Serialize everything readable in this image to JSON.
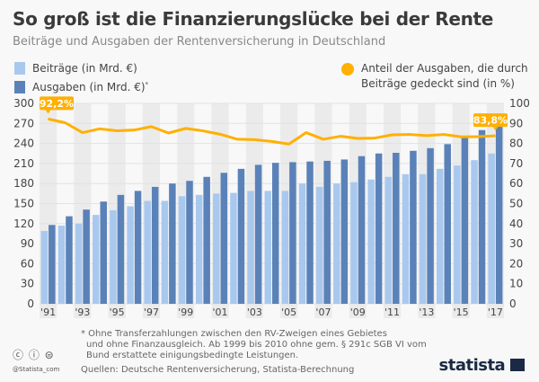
{
  "chart_data": {
    "type": "bar+line",
    "title": "So groß ist die Finanzierungslücke bei der Rente",
    "subtitle": "Beiträge und Ausgaben der Rentenversicherung in Deutschland",
    "categories": [
      "1991",
      "1992",
      "1993",
      "1994",
      "1995",
      "1996",
      "1997",
      "1998",
      "1999",
      "2000",
      "2001",
      "2002",
      "2003",
      "2004",
      "2005",
      "2006",
      "2007",
      "2008",
      "2009",
      "2010",
      "2011",
      "2012",
      "2013",
      "2014",
      "2015",
      "2016",
      "2017"
    ],
    "x_tick_labels": [
      "'91",
      "'93",
      "'95",
      "'97",
      "'99",
      "'01",
      "'03",
      "'05",
      "'07",
      "'09",
      "'11",
      "'13",
      "'15",
      "'17"
    ],
    "series": [
      {
        "name": "Beiträge (in Mrd. €)",
        "type": "bar",
        "axis": "left",
        "color": "#a9c8ee",
        "values": [
          109,
          117,
          120,
          133,
          140,
          146,
          154,
          154,
          161,
          163,
          165,
          166,
          169,
          169,
          169,
          180,
          175,
          180,
          182,
          186,
          190,
          194,
          194,
          202,
          207,
          215,
          225
        ]
      },
      {
        "name": "Ausgaben (in Mrd. €)*",
        "type": "bar",
        "axis": "left",
        "color": "#5a82b8",
        "values": [
          118,
          131,
          141,
          153,
          163,
          169,
          175,
          180,
          184,
          190,
          196,
          202,
          208,
          211,
          212,
          213,
          214,
          216,
          221,
          225,
          226,
          229,
          233,
          239,
          249,
          260,
          269
        ]
      },
      {
        "name": "Anteil der Ausgaben, die durch Beiträge gedeckt sind (in %)",
        "type": "line",
        "axis": "right",
        "color": "#ffb000",
        "values": [
          92.2,
          90.3,
          85.4,
          87.3,
          86.3,
          86.7,
          88.4,
          85.2,
          87.5,
          86.3,
          84.6,
          82.1,
          81.9,
          81.0,
          79.7,
          85.4,
          82.1,
          83.6,
          82.5,
          82.7,
          84.3,
          84.5,
          83.9,
          84.5,
          83.3,
          83.4,
          83.8
        ]
      }
    ],
    "y_left": {
      "ylim": [
        0,
        300
      ],
      "ticks": [
        "0",
        "30",
        "60",
        "90",
        "120",
        "150",
        "180",
        "210",
        "240",
        "270",
        "300"
      ]
    },
    "y_right": {
      "ylim": [
        0,
        100
      ],
      "ticks": [
        "0",
        "10",
        "20",
        "30",
        "40",
        "50",
        "60",
        "70",
        "80",
        "90",
        "100"
      ]
    },
    "annotations": [
      {
        "year": "1991",
        "text": "92,2%"
      },
      {
        "year": "2017",
        "text": "83,8%"
      }
    ],
    "grid": true,
    "legend_placement": "top"
  },
  "legend": {
    "contrib": "Beiträge (in Mrd. €)",
    "expend": "Ausgaben (in Mrd. €)",
    "expend_mark": "*",
    "share_line1": "Anteil der Ausgaben, die durch",
    "share_line2": "Beiträge gedeckt sind (in %)"
  },
  "footer": {
    "note1": "* Ohne Transferzahlungen zwischen den RV-Zweigen eines Gebietes",
    "note2": "und ohne Finanzausgleich. Ab 1999 bis 2010 ohne gem. § 291c SGB VI vom",
    "note3": "Bund erstattete einigungsbedingte Leistungen.",
    "sources": "Quellen: Deutsche Rentenversicherung, Statista-Berechnung",
    "license_icons": "cc-by-nd-icons",
    "handle": "@Statista_com",
    "brand": "statista"
  }
}
